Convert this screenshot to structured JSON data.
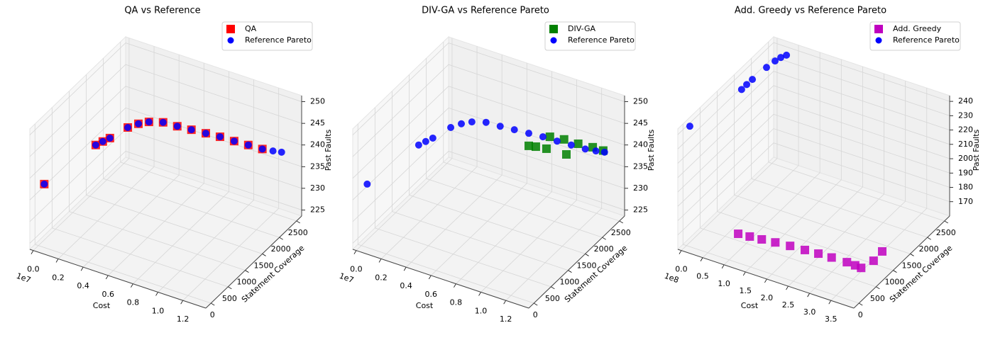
{
  "chart_data": [
    {
      "type": "scatter3d",
      "title": "QA vs Reference",
      "xlabel": "Cost",
      "ylabel": "Statement Coverage",
      "zlabel": "Past Faults",
      "x_offset_label": "1e7",
      "xlim": [
        -0.028,
        1.384
      ],
      "ylim": [
        -150,
        2650
      ],
      "zlim": [
        223.6,
        251.4
      ],
      "xticks": [
        {
          "value": 0,
          "label": "0.0"
        },
        0.2,
        0.4,
        0.6,
        0.8,
        {
          "value": 1,
          "label": "1.0"
        },
        1.2
      ],
      "yticks": [
        0,
        500,
        1000,
        1500,
        2000,
        2500
      ],
      "zticks": [
        225,
        230,
        235,
        240,
        245,
        250
      ],
      "grid": true,
      "legend": "upper right",
      "series": [
        {
          "name": "QA",
          "color": "#ff0000",
          "marker": "square",
          "x": [
            0.0,
            0.287,
            0.326,
            0.366,
            0.466,
            0.525,
            0.584,
            0.663,
            0.742,
            0.821,
            0.902,
            0.981,
            1.06,
            1.139,
            1.218
          ],
          "y": [
            170,
            629,
            693,
            755,
            914,
            1009,
            1102,
            1228,
            1354,
            1480,
            1606,
            1732,
            1858,
            1984,
            2107
          ],
          "z": [
            236.5,
            244.8,
            245.5,
            246.2,
            248.4,
            249.1,
            249.4,
            249.1,
            248.0,
            247.0,
            246.0,
            245.0,
            243.8,
            242.7,
            241.6
          ]
        },
        {
          "name": "Reference Pareto",
          "color": "#0000ff",
          "marker": "circle",
          "x": [
            0.0,
            0.287,
            0.326,
            0.366,
            0.466,
            0.525,
            0.584,
            0.663,
            0.742,
            0.821,
            0.902,
            0.981,
            1.06,
            1.139,
            1.218,
            1.277,
            1.325
          ],
          "y": [
            170,
            629,
            693,
            755,
            914,
            1009,
            1102,
            1228,
            1354,
            1480,
            1606,
            1732,
            1858,
            1984,
            2107,
            2202,
            2278
          ],
          "z": [
            236.5,
            244.8,
            245.5,
            246.2,
            248.4,
            249.1,
            249.4,
            249.1,
            248.0,
            247.0,
            246.0,
            245.0,
            243.8,
            242.7,
            241.6,
            241.0,
            240.6
          ]
        }
      ]
    },
    {
      "type": "scatter3d",
      "title": "DIV-GA vs Reference Pareto",
      "xlabel": "Cost",
      "ylabel": "Statement Coverage",
      "zlabel": "Past Faults",
      "x_offset_label": "1e7",
      "xlim": [
        -0.028,
        1.384
      ],
      "ylim": [
        -150,
        2650
      ],
      "zlim": [
        223.6,
        251.4
      ],
      "xticks": [
        {
          "value": 0,
          "label": "0.0"
        },
        0.2,
        0.4,
        0.6,
        0.8,
        {
          "value": 1,
          "label": "1.0"
        },
        1.2
      ],
      "yticks": [
        0,
        500,
        1000,
        1500,
        2000,
        2500
      ],
      "zticks": [
        225,
        230,
        235,
        240,
        245,
        250
      ],
      "grid": true,
      "legend": "upper right",
      "series": [
        {
          "name": "DIV-GA",
          "color": "#008000",
          "marker": "square",
          "x": [
            0.902,
            0.941,
            1.001,
            1.112,
            1.02,
            1.099,
            1.178,
            1.259,
            1.318
          ],
          "y": [
            1606,
            1670,
            1763,
            1940,
            1794,
            1920,
            2045,
            2174,
            2266
          ],
          "z": [
            243.1,
            242.8,
            242.2,
            240.6,
            244.9,
            244.1,
            242.9,
            241.9,
            241.0
          ]
        },
        {
          "name": "Reference Pareto",
          "color": "#0000ff",
          "marker": "circle",
          "x": [
            0.0,
            0.287,
            0.326,
            0.366,
            0.466,
            0.525,
            0.584,
            0.663,
            0.742,
            0.821,
            0.902,
            0.981,
            1.06,
            1.139,
            1.218,
            1.277,
            1.325
          ],
          "y": [
            170,
            629,
            693,
            755,
            914,
            1009,
            1102,
            1228,
            1354,
            1480,
            1606,
            1732,
            1858,
            1984,
            2107,
            2202,
            2278
          ],
          "z": [
            236.5,
            244.8,
            245.5,
            246.2,
            248.4,
            249.1,
            249.4,
            249.1,
            248.0,
            247.0,
            246.0,
            245.0,
            243.8,
            242.7,
            241.6,
            241.0,
            240.6
          ]
        }
      ]
    },
    {
      "type": "scatter3d",
      "title": "Add. Greedy vs Reference Pareto",
      "xlabel": "Cost",
      "ylabel": "Statement Coverage",
      "zlabel": "Past Faults",
      "x_offset_label": "1e8",
      "xlim": [
        -0.082,
        4.035
      ],
      "ylim": [
        -150,
        2650
      ],
      "zlim": [
        160,
        244
      ],
      "xticks": [
        {
          "value": 0,
          "label": "0.0"
        },
        0.5,
        {
          "value": 1,
          "label": "1.0"
        },
        1.5,
        {
          "value": 2,
          "label": "2.0"
        },
        2.5,
        {
          "value": 3,
          "label": "3.0"
        },
        3.5
      ],
      "yticks": [
        0,
        500,
        1000,
        1500,
        2000,
        2500
      ],
      "zticks": [
        170,
        180,
        190,
        200,
        210,
        220,
        230,
        240
      ],
      "grid": true,
      "legend": "upper right",
      "series": [
        {
          "name": "Add. Greedy",
          "color": "#bf00bf",
          "marker": "square",
          "x": [
            0.75,
            1.0,
            1.26,
            1.55,
            1.87,
            2.2,
            2.5,
            2.8,
            3.15,
            3.35,
            3.5,
            3.74,
            3.83
          ],
          "y": [
            575,
            600,
            626,
            660,
            693,
            712,
            732,
            744,
            754,
            745,
            732,
            796,
            936
          ],
          "z": [
            162.5,
            162.5,
            162.5,
            162.5,
            162.5,
            162.5,
            162.5,
            162.5,
            162.5,
            162.5,
            162.5,
            168.4,
            172.6
          ]
        },
        {
          "name": "Reference Pareto",
          "color": "#0000ff",
          "marker": "circle",
          "x": [
            0.0,
            0.054,
            0.079,
            0.111,
            0.153,
            0.198,
            0.247,
            0.317
          ],
          "y": [
            99,
            1544,
            1662,
            1788,
            2149,
            2342,
            2448,
            2527
          ],
          "z": [
            241.0,
            234.0,
            235.0,
            236.0,
            236.5,
            237.0,
            237.5,
            238.0
          ]
        }
      ]
    }
  ]
}
